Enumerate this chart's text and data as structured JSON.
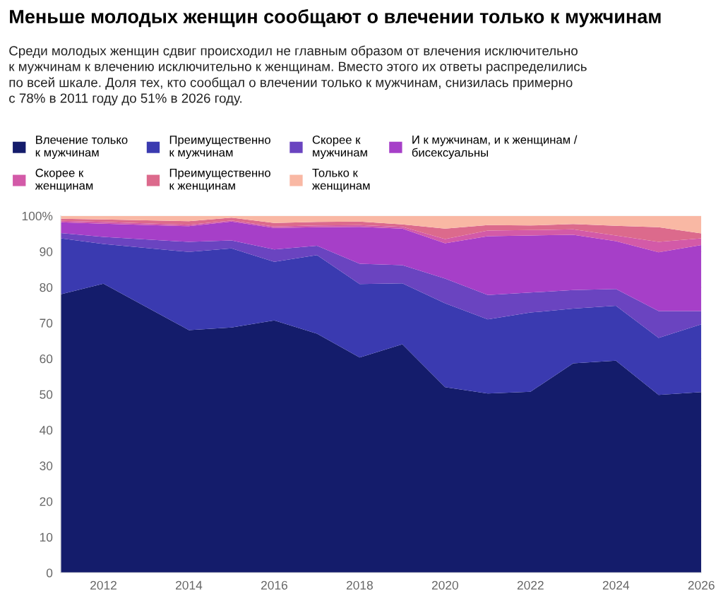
{
  "chart_data": {
    "type": "area",
    "stacked": true,
    "title": "Меньше молодых женщин сообщают о влечении только к мужчинам",
    "subtitle": "Среди молодых женщин сдвиг происходил не главным образом от влечения исключительно\nк мужчинам к влечению исключительно к женщинам. Вместо этого их ответы распределились\nпо всей шкале. Доля тех, кто сообщал о влечении только к мужчинам, снизилась примерно\nс 78% в 2011 году до 51% в 2026 году.",
    "x": [
      2011,
      2012,
      2014,
      2015,
      2016,
      2017,
      2018,
      2019,
      2020,
      2021,
      2022,
      2023,
      2024,
      2025,
      2026
    ],
    "series": [
      {
        "name": "Влечение только\nк мужчинам",
        "color": "#141c6b",
        "values": [
          78.0,
          81.0,
          68.0,
          68.7,
          70.7,
          67.0,
          60.3,
          64.0,
          52.0,
          50.2,
          50.7,
          58.7,
          59.4,
          49.8,
          50.6
        ]
      },
      {
        "name": "Преимущественно\nк мужчинам",
        "color": "#3a3ab0",
        "values": [
          15.7,
          11.1,
          21.9,
          22.2,
          16.4,
          22.0,
          20.6,
          17.1,
          23.5,
          20.8,
          22.2,
          15.3,
          15.4,
          16.0,
          19.0
        ]
      },
      {
        "name": "Скорее к\nмужчинам",
        "color": "#6a44c0",
        "values": [
          1.5,
          2.0,
          2.8,
          2.2,
          3.5,
          2.6,
          5.7,
          5.1,
          6.9,
          6.8,
          5.6,
          5.2,
          4.7,
          7.5,
          3.7
        ]
      },
      {
        "name": "И к мужчинам, и к женщинам /\nбисексуальны",
        "color": "#a63fc8",
        "values": [
          3.0,
          3.7,
          4.4,
          5.3,
          6.0,
          5.2,
          10.3,
          10.2,
          9.9,
          16.5,
          16.0,
          15.5,
          13.4,
          16.5,
          18.5
        ]
      },
      {
        "name": "Скорее к\nженщинам",
        "color": "#d35aa8",
        "values": [
          0.4,
          0.5,
          0.4,
          0.3,
          0.4,
          0.5,
          0.5,
          0.5,
          1.2,
          1.6,
          1.5,
          1.5,
          1.6,
          2.9,
          1.9
        ]
      },
      {
        "name": "Преимущественно\nк женщинам",
        "color": "#dc6a8c",
        "values": [
          0.6,
          0.7,
          1.0,
          0.8,
          1.0,
          1.0,
          1.0,
          0.7,
          2.9,
          1.5,
          1.3,
          1.5,
          2.7,
          4.1,
          1.4
        ]
      },
      {
        "name": "Только к\nженщинам",
        "color": "#f9b8a4",
        "values": [
          0.8,
          1.0,
          1.5,
          0.5,
          2.0,
          1.7,
          1.6,
          2.4,
          3.6,
          2.6,
          2.7,
          2.3,
          2.8,
          3.2,
          4.9
        ]
      }
    ],
    "xlim": [
      2011,
      2026
    ],
    "xticks": [
      2012,
      2014,
      2016,
      2018,
      2020,
      2022,
      2024,
      2026
    ],
    "ylim": [
      0,
      100
    ],
    "yticks": [
      0,
      10,
      20,
      30,
      40,
      50,
      60,
      70,
      80,
      90,
      {
        "value": 100,
        "label": "100%"
      }
    ],
    "grid": "y",
    "legend": "top"
  }
}
